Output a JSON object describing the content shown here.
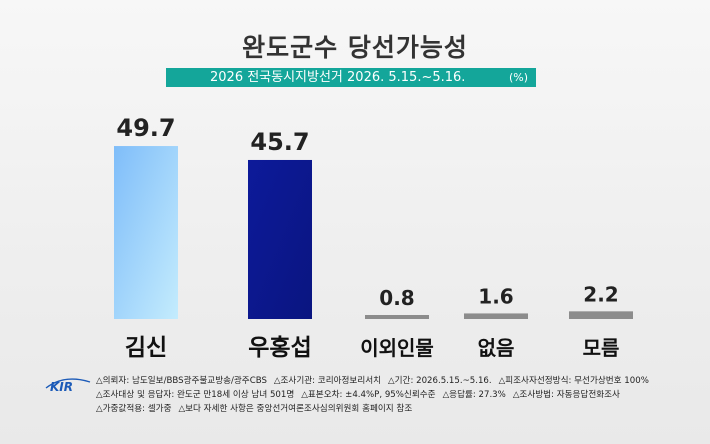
{
  "header": {
    "title": "완도군수 당선가능성",
    "subtitle": "2026 전국동시지방선거 2026. 5.15.~5.16.",
    "unit": "(%)"
  },
  "chart_data": {
    "type": "bar",
    "title": "완도군수 당선가능성",
    "subtitle": "2026 전국동시지방선거 2026. 5.15.~5.16.",
    "unit": "(%)",
    "categories": [
      "김신",
      "우홍섭",
      "이외인물",
      "없음",
      "모름"
    ],
    "values": [
      49.7,
      45.7,
      0.8,
      1.6,
      2.2
    ],
    "value_labels": [
      "49.7",
      "45.7",
      "0.8",
      "1.6",
      "2.2"
    ],
    "colors": [
      "#9fd0fb",
      "#1a2aa8",
      "#8c8c8c",
      "#8c8c8c",
      "#8c8c8c"
    ],
    "gradient_tops": [
      "#7fbdf9",
      "#0d1a9a",
      "#8c8c8c",
      "#8c8c8c",
      "#8c8c8c"
    ],
    "gradient_bottoms": [
      "#c4ecfd",
      "#0a1580",
      "#8c8c8c",
      "#8c8c8c",
      "#8c8c8c"
    ],
    "ylim": [
      0,
      60
    ],
    "xlabel": "",
    "ylabel": "",
    "grid": false,
    "legend": "none"
  },
  "footer": {
    "logo_text": "KIR",
    "logo_color": "#1c5bb8",
    "lines": [
      [
        "△의뢰자: 남도일보/BBS광주불교방송/광주CBS",
        "△조사기관: 코리아정보리서치",
        "△기간: 2026.5.15.~5.16.",
        "△피조사자선정방식: 무선가상번호 100%"
      ],
      [
        "△조사대상 및 응답자: 완도군 만18세 이상 남녀 501명",
        "△표본오차: ±4.4%P, 95%신뢰수준",
        "△응답률: 27.3%",
        "△조사방법: 자동응답전화조사"
      ],
      [
        "△가중값적용: 셀가중",
        "△보다 자세한 사항은 중앙선거여론조사심의위원회 홈페이지 참조"
      ]
    ]
  }
}
